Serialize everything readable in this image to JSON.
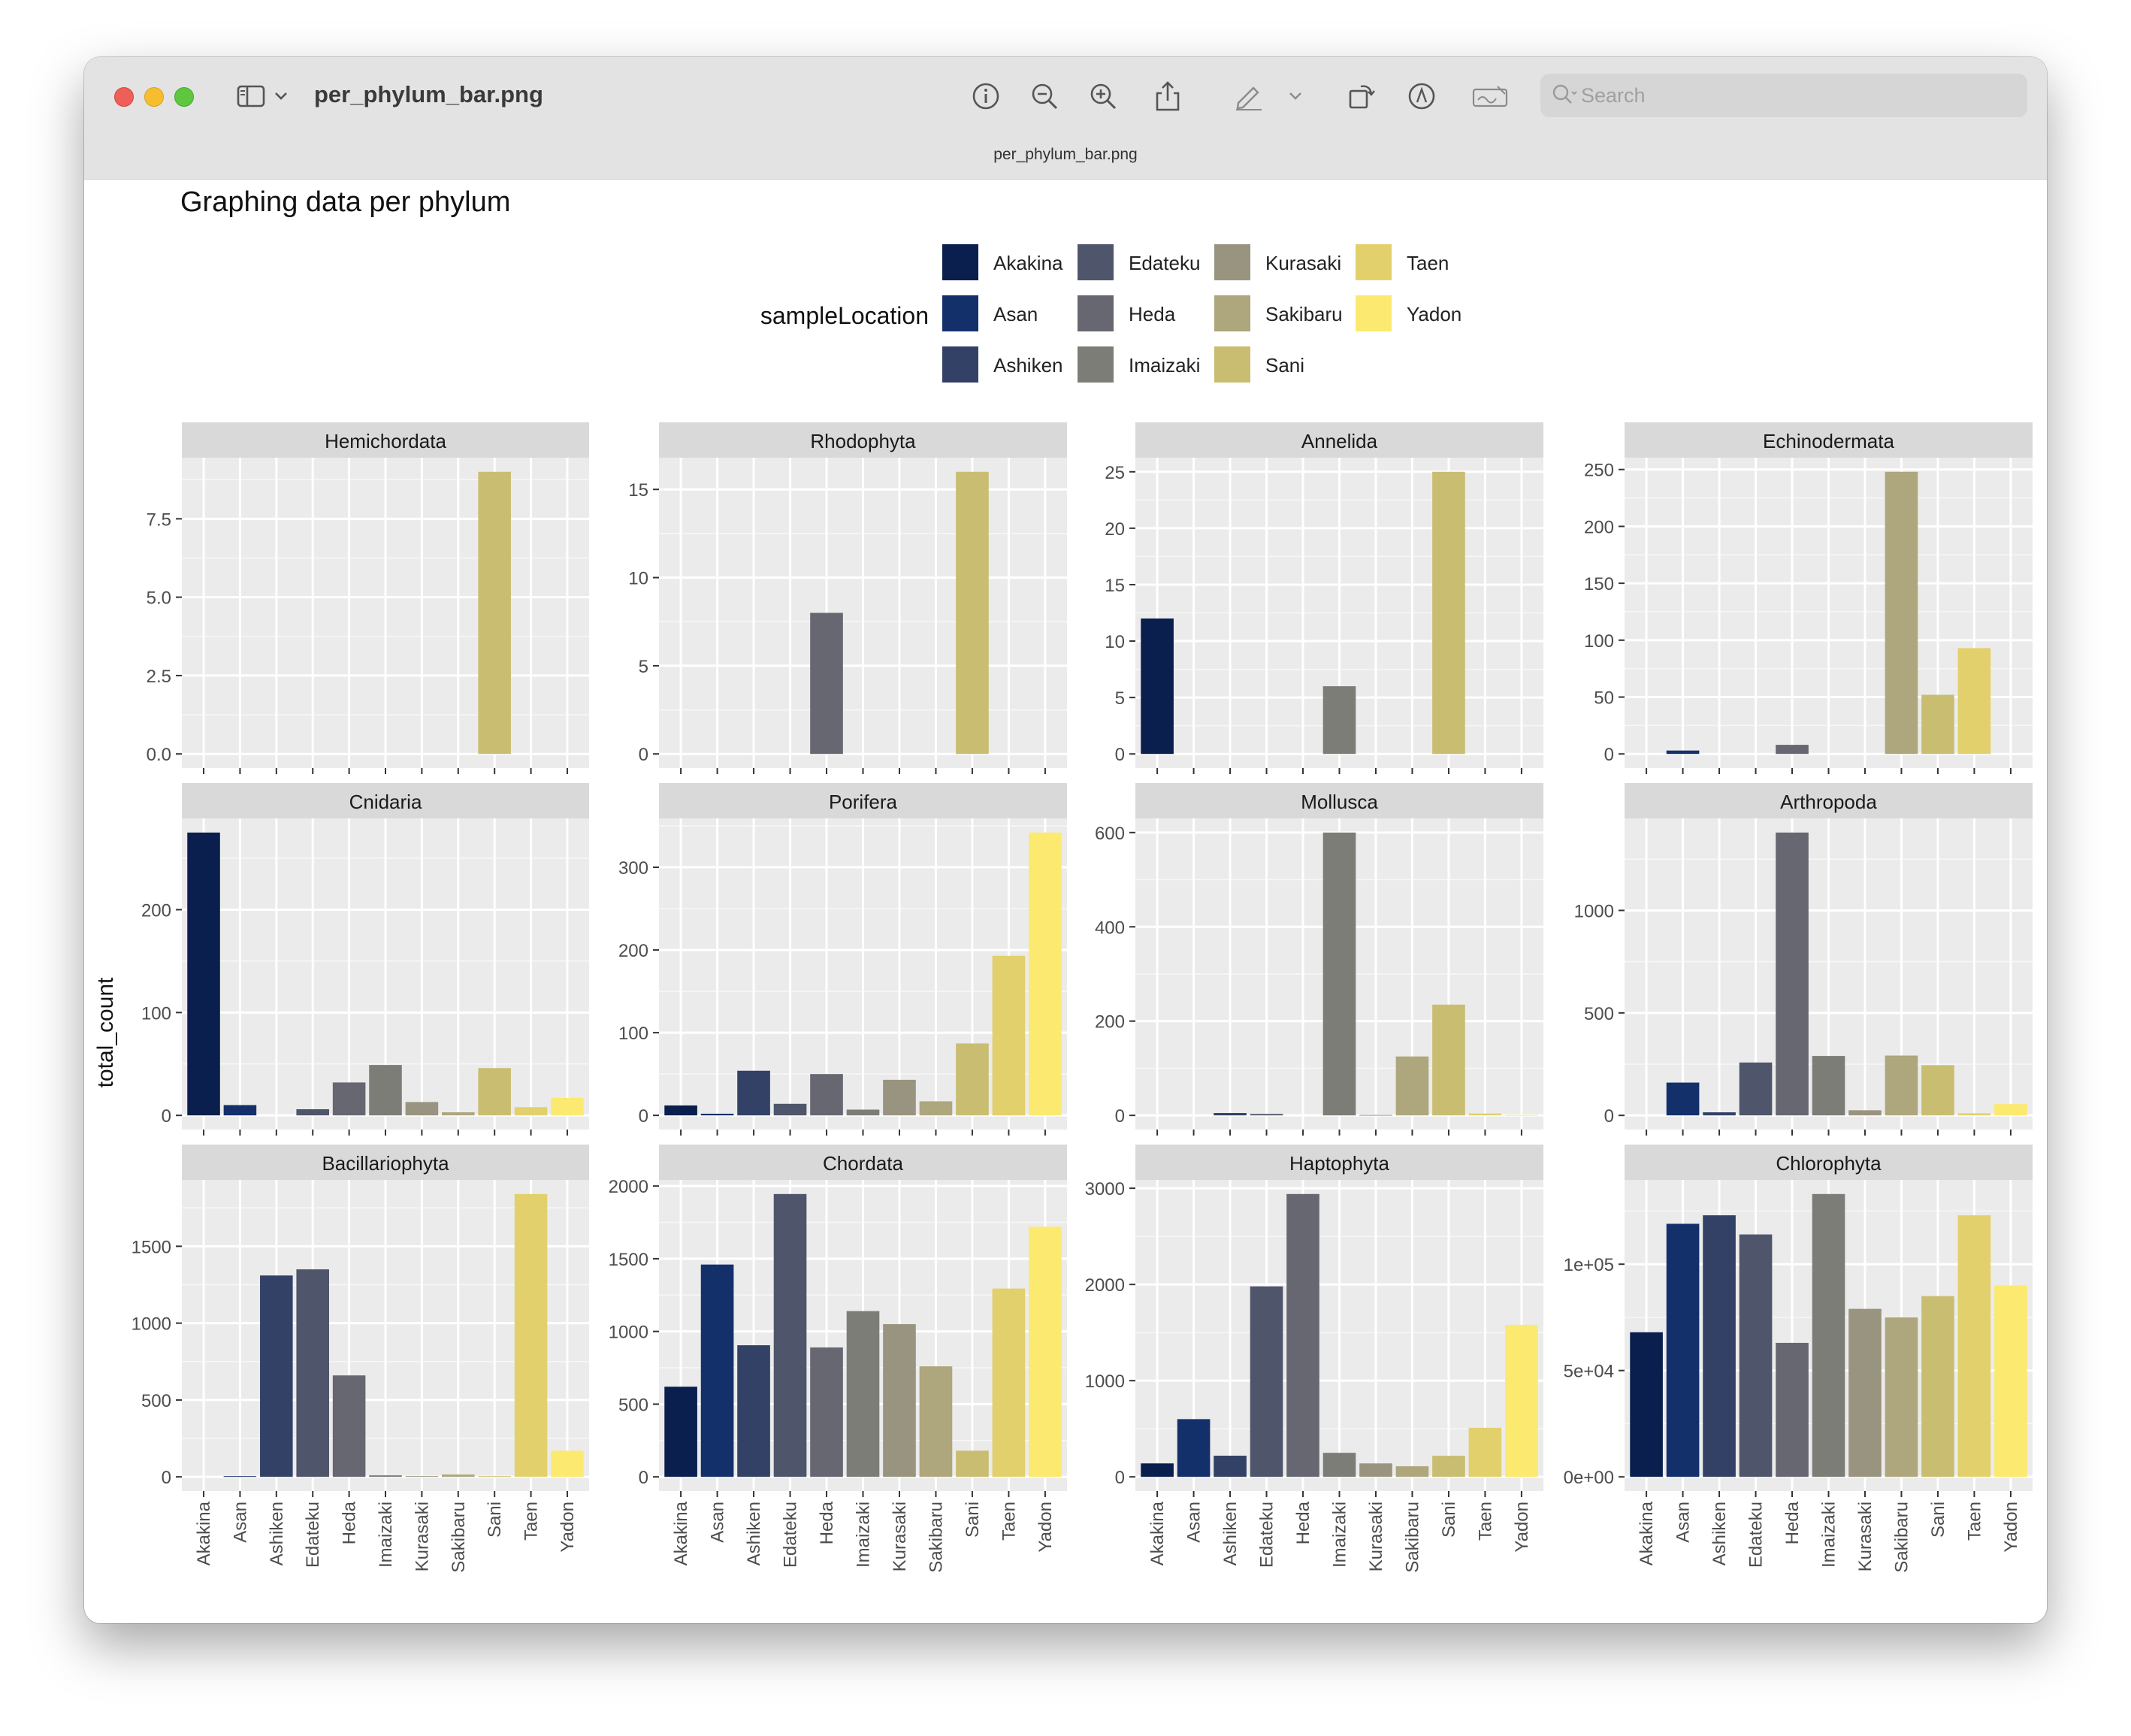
{
  "window": {
    "title": "per_phylum_bar.png",
    "subtitle": "per_phylum_bar.png",
    "search_placeholder": "Search"
  },
  "toolbar_icons": [
    "sidebar-icon",
    "chevron-down-icon",
    "info-icon",
    "zoom-out-icon",
    "zoom-in-icon",
    "share-icon",
    "markup-pen-icon",
    "chevron-down-icon",
    "rotate-icon",
    "annotate-icon",
    "signature-icon",
    "search-icon"
  ],
  "plot": {
    "title": "Graphing data per phylum",
    "ylabel": "total_count",
    "legend_title": "sampleLocation",
    "locations": [
      "Akakina",
      "Asan",
      "Ashiken",
      "Edateku",
      "Heda",
      "Imaizaki",
      "Kurasaki",
      "Sakibaru",
      "Sani",
      "Taen",
      "Yadon"
    ],
    "colors": [
      "#0a1f4d",
      "#13306b",
      "#334166",
      "#4f566b",
      "#666771",
      "#7d7d78",
      "#999480",
      "#aea67c",
      "#c9bd72",
      "#e2d06c",
      "#fce970"
    ],
    "panel_bg": "#ebebeb",
    "strip_bg": "#d9d9d9"
  },
  "chart_data": [
    {
      "type": "bar",
      "title": "Hemichordata",
      "categories": [
        "Akakina",
        "Asan",
        "Ashiken",
        "Edateku",
        "Heda",
        "Imaizaki",
        "Kurasaki",
        "Sakibaru",
        "Sani",
        "Taen",
        "Yadon"
      ],
      "values": [
        0,
        0,
        0,
        0,
        0,
        0,
        0,
        0,
        9,
        0,
        0
      ],
      "ylim": [
        -0.45,
        9.45
      ],
      "yticks": [
        0,
        2.5,
        5,
        7.5
      ],
      "ytick_labels": [
        "0.0",
        "2.5",
        "5.0",
        "7.5"
      ]
    },
    {
      "type": "bar",
      "title": "Rhodophyta",
      "categories": [
        "Akakina",
        "Asan",
        "Ashiken",
        "Edateku",
        "Heda",
        "Imaizaki",
        "Kurasaki",
        "Sakibaru",
        "Sani",
        "Taen",
        "Yadon"
      ],
      "values": [
        0,
        0,
        0,
        0,
        8,
        0,
        0,
        0,
        16,
        0,
        0
      ],
      "ylim": [
        -0.8,
        16.8
      ],
      "yticks": [
        0,
        5,
        10,
        15
      ],
      "ytick_labels": [
        "0",
        "5",
        "10",
        "15"
      ]
    },
    {
      "type": "bar",
      "title": "Annelida",
      "categories": [
        "Akakina",
        "Asan",
        "Ashiken",
        "Edateku",
        "Heda",
        "Imaizaki",
        "Kurasaki",
        "Sakibaru",
        "Sani",
        "Taen",
        "Yadon"
      ],
      "values": [
        12,
        0,
        0,
        0,
        0,
        6,
        0,
        0,
        25,
        0,
        0
      ],
      "ylim": [
        -1.25,
        26.25
      ],
      "yticks": [
        0,
        5,
        10,
        15,
        20,
        25
      ],
      "ytick_labels": [
        "0",
        "5",
        "10",
        "15",
        "20",
        "25"
      ]
    },
    {
      "type": "bar",
      "title": "Echinodermata",
      "categories": [
        "Akakina",
        "Asan",
        "Ashiken",
        "Edateku",
        "Heda",
        "Imaizaki",
        "Kurasaki",
        "Sakibaru",
        "Sani",
        "Taen",
        "Yadon"
      ],
      "values": [
        0,
        3,
        0,
        0,
        8,
        0,
        0,
        248,
        52,
        93,
        0
      ],
      "ylim": [
        -12.4,
        260.4
      ],
      "yticks": [
        0,
        50,
        100,
        150,
        200,
        250
      ],
      "ytick_labels": [
        "0",
        "50",
        "100",
        "150",
        "200",
        "250"
      ]
    },
    {
      "type": "bar",
      "title": "Cnidaria",
      "categories": [
        "Akakina",
        "Asan",
        "Ashiken",
        "Edateku",
        "Heda",
        "Imaizaki",
        "Kurasaki",
        "Sakibaru",
        "Sani",
        "Taen",
        "Yadon"
      ],
      "values": [
        275,
        10,
        0,
        6,
        32,
        49,
        13,
        3,
        46,
        8,
        17
      ],
      "ylim": [
        -13.75,
        288.75
      ],
      "yticks": [
        0,
        100,
        200
      ],
      "ytick_labels": [
        "0",
        "100",
        "200"
      ]
    },
    {
      "type": "bar",
      "title": "Porifera",
      "categories": [
        "Akakina",
        "Asan",
        "Ashiken",
        "Edateku",
        "Heda",
        "Imaizaki",
        "Kurasaki",
        "Sakibaru",
        "Sani",
        "Taen",
        "Yadon"
      ],
      "values": [
        12,
        2,
        54,
        14,
        50,
        7,
        43,
        17,
        87,
        193,
        342
      ],
      "ylim": [
        -17.1,
        359.1
      ],
      "yticks": [
        0,
        100,
        200,
        300
      ],
      "ytick_labels": [
        "0",
        "100",
        "200",
        "300"
      ]
    },
    {
      "type": "bar",
      "title": "Mollusca",
      "categories": [
        "Akakina",
        "Asan",
        "Ashiken",
        "Edateku",
        "Heda",
        "Imaizaki",
        "Kurasaki",
        "Sakibaru",
        "Sani",
        "Taen",
        "Yadon"
      ],
      "values": [
        0,
        0,
        5,
        3,
        0,
        600,
        1,
        125,
        235,
        4,
        1
      ],
      "ylim": [
        -30,
        630
      ],
      "yticks": [
        0,
        200,
        400,
        600
      ],
      "ytick_labels": [
        "0",
        "200",
        "400",
        "600"
      ]
    },
    {
      "type": "bar",
      "title": "Arthropoda",
      "categories": [
        "Akakina",
        "Asan",
        "Ashiken",
        "Edateku",
        "Heda",
        "Imaizaki",
        "Kurasaki",
        "Sakibaru",
        "Sani",
        "Taen",
        "Yadon"
      ],
      "values": [
        0,
        160,
        15,
        258,
        1380,
        290,
        25,
        292,
        245,
        10,
        55
      ],
      "ylim": [
        -69,
        1449
      ],
      "yticks": [
        0,
        500,
        1000
      ],
      "ytick_labels": [
        "0",
        "500",
        "1000"
      ]
    },
    {
      "type": "bar",
      "title": "Bacillariophyta",
      "categories": [
        "Akakina",
        "Asan",
        "Ashiken",
        "Edateku",
        "Heda",
        "Imaizaki",
        "Kurasaki",
        "Sakibaru",
        "Sani",
        "Taen",
        "Yadon"
      ],
      "values": [
        0,
        5,
        1310,
        1350,
        660,
        10,
        5,
        15,
        5,
        1840,
        170
      ],
      "ylim": [
        -92,
        1932
      ],
      "yticks": [
        0,
        500,
        1000,
        1500
      ],
      "ytick_labels": [
        "0",
        "500",
        "1000",
        "1500"
      ]
    },
    {
      "type": "bar",
      "title": "Chordata",
      "categories": [
        "Akakina",
        "Asan",
        "Ashiken",
        "Edateku",
        "Heda",
        "Imaizaki",
        "Kurasaki",
        "Sakibaru",
        "Sani",
        "Taen",
        "Yadon"
      ],
      "values": [
        620,
        1460,
        905,
        1945,
        890,
        1140,
        1050,
        760,
        180,
        1295,
        1720
      ],
      "ylim": [
        -97.25,
        2042.25
      ],
      "yticks": [
        0,
        500,
        1000,
        1500,
        2000
      ],
      "ytick_labels": [
        "0",
        "500",
        "1000",
        "1500",
        "2000"
      ]
    },
    {
      "type": "bar",
      "title": "Haptophyta",
      "categories": [
        "Akakina",
        "Asan",
        "Ashiken",
        "Edateku",
        "Heda",
        "Imaizaki",
        "Kurasaki",
        "Sakibaru",
        "Sani",
        "Taen",
        "Yadon"
      ],
      "values": [
        140,
        600,
        220,
        1980,
        2940,
        250,
        140,
        110,
        220,
        510,
        1580
      ],
      "ylim": [
        -147,
        3087
      ],
      "yticks": [
        0,
        1000,
        2000,
        3000
      ],
      "ytick_labels": [
        "0",
        "1000",
        "2000",
        "3000"
      ]
    },
    {
      "type": "bar",
      "title": "Chlorophyta",
      "categories": [
        "Akakina",
        "Asan",
        "Ashiken",
        "Edateku",
        "Heda",
        "Imaizaki",
        "Kurasaki",
        "Sakibaru",
        "Sani",
        "Taen",
        "Yadon"
      ],
      "values": [
        68000,
        119000,
        123000,
        114000,
        63000,
        133000,
        79000,
        75000,
        85000,
        123000,
        90000
      ],
      "ylim": [
        -6650,
        139650
      ],
      "yticks": [
        0,
        50000,
        100000
      ],
      "ytick_labels": [
        "0e+00",
        "5e+04",
        "1e+05"
      ]
    }
  ]
}
